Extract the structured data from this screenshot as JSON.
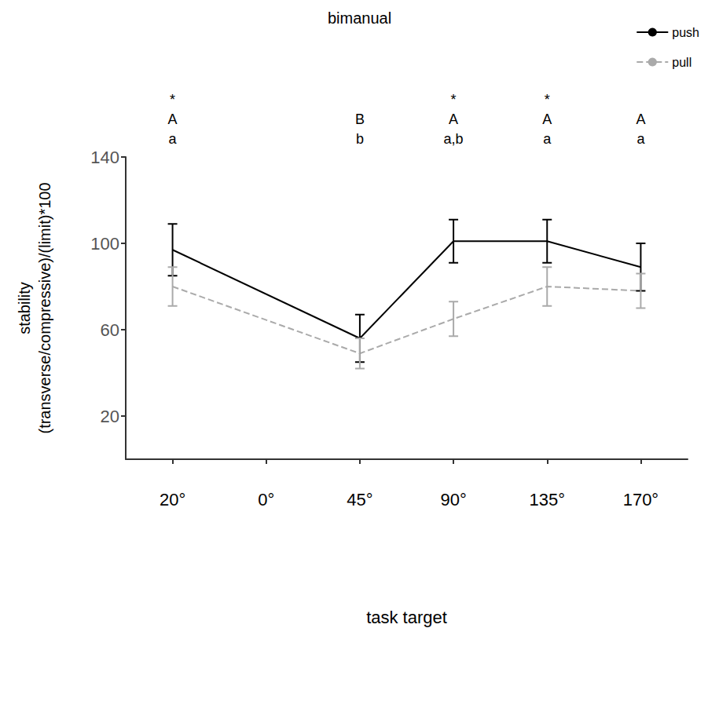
{
  "chart_data": {
    "type": "line",
    "title": "bimanual",
    "x_label": "task target",
    "y_label": "stability (transverse/compressive)/(limit)*100",
    "categories": [
      "20°",
      "0°",
      "45°",
      "90°",
      "135°",
      "170°"
    ],
    "series": [
      {
        "name": "push",
        "color": "#000000",
        "line_style": "solid",
        "values": [
          97,
          null,
          56,
          101,
          101,
          89
        ],
        "error": [
          12,
          null,
          11,
          10,
          10,
          11
        ]
      },
      {
        "name": "pull",
        "color": "#aaaaaa",
        "line_style": "dashed",
        "values": [
          80,
          null,
          49,
          65,
          80,
          78
        ],
        "error": [
          9,
          null,
          7,
          8,
          9,
          8
        ]
      }
    ],
    "annotations": [
      {
        "category": "20°",
        "lines": [
          "*",
          "A",
          "a"
        ]
      },
      {
        "category": "45°",
        "lines": [
          "B",
          "b"
        ]
      },
      {
        "category": "90°",
        "lines": [
          "*",
          "A",
          "a,b"
        ]
      },
      {
        "category": "135°",
        "lines": [
          "*",
          "A",
          "a"
        ]
      },
      {
        "category": "170°",
        "lines": [
          "A",
          "a"
        ]
      }
    ],
    "ylim": [
      0,
      140
    ],
    "yticks": [
      20,
      60,
      100,
      140
    ],
    "grid": false,
    "legend": "upper right"
  }
}
